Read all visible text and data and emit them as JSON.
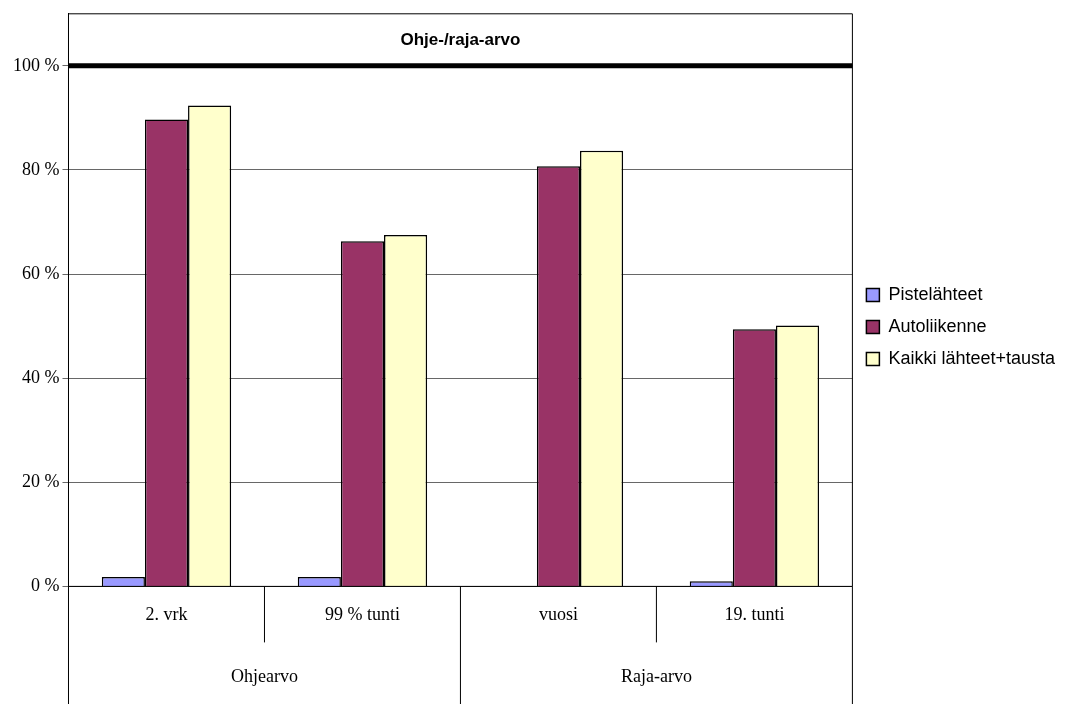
{
  "chart_data": {
    "type": "bar",
    "title": "Ohje-/raja-arvo",
    "categories": [
      "2. vrk",
      "99 % tunti",
      "vuosi",
      "19. tunti"
    ],
    "series": [
      {
        "name": "Pistelähteet",
        "color": "#9999ff",
        "values": [
          1.8,
          1.8,
          0,
          1.0
        ]
      },
      {
        "name": "Autoliikenne",
        "color": "#993366",
        "values": [
          89.7,
          66.3,
          80.7,
          49.4
        ]
      },
      {
        "name": "Kaikki lähteet+tausta",
        "color": "#ffffcc",
        "values": [
          92.4,
          67.5,
          83.7,
          50.1
        ]
      }
    ],
    "ylim": [
      0,
      110
    ],
    "yticks": [
      {
        "value": 0,
        "label": "0 %"
      },
      {
        "value": 20,
        "label": "20 %"
      },
      {
        "value": 40,
        "label": "40 %"
      },
      {
        "value": 60,
        "label": "60 %"
      },
      {
        "value": 80,
        "label": "80 %"
      },
      {
        "value": 100,
        "label": "100 %"
      }
    ],
    "grid": "y",
    "legend": "right",
    "ref_lines": [
      {
        "axis": "y",
        "value": 100,
        "color": "#000000"
      }
    ],
    "annotations": [
      "Ohjearvo",
      "Raja-arvo"
    ]
  }
}
